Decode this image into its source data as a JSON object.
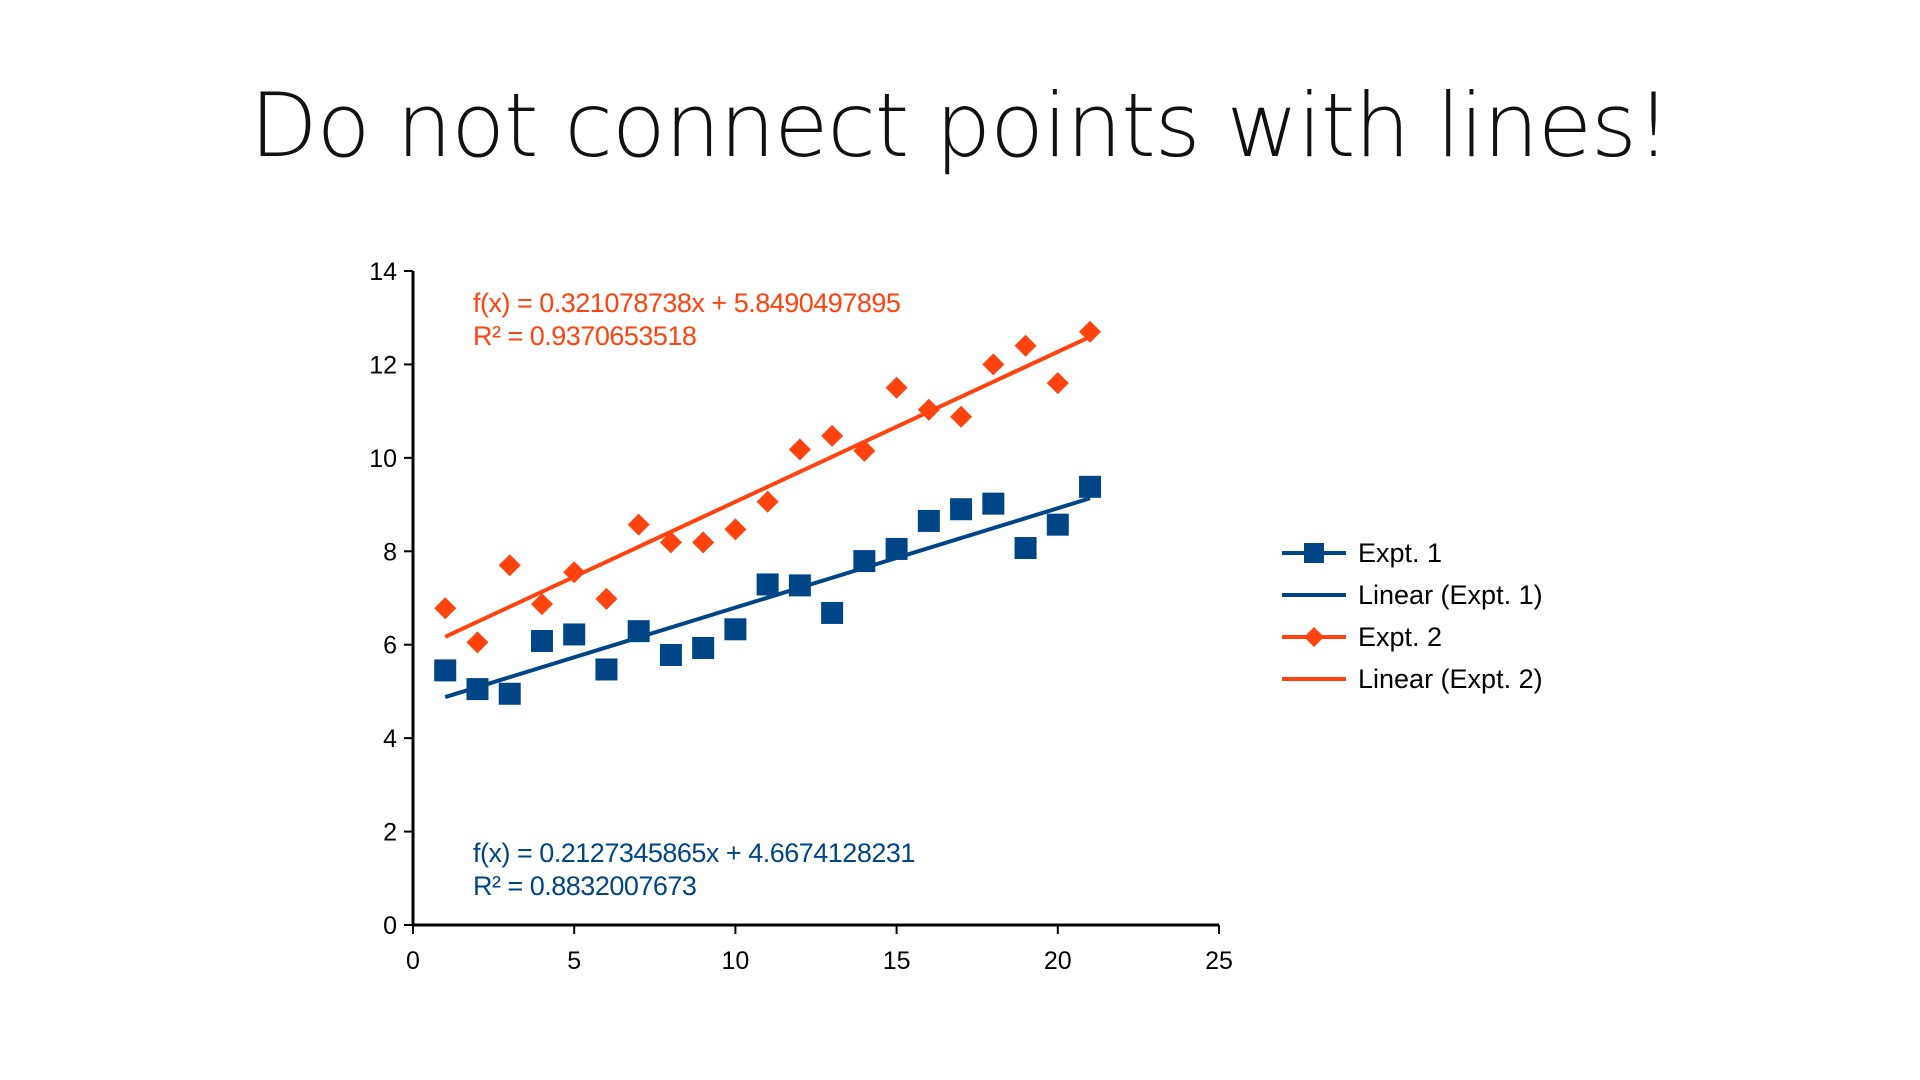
{
  "title": "Do not connect points with lines!",
  "chart_data": {
    "type": "scatter",
    "xlim": [
      0,
      25
    ],
    "ylim": [
      0,
      14
    ],
    "x_ticks": [
      0,
      5,
      10,
      15,
      20,
      25
    ],
    "y_ticks": [
      0,
      2,
      4,
      6,
      8,
      10,
      12,
      14
    ],
    "grid": false,
    "legend_position": "right",
    "series": [
      {
        "name": "Expt. 1",
        "marker": "square",
        "color": "#004586",
        "x": [
          1,
          2,
          3,
          4,
          5,
          6,
          7,
          8,
          9,
          10,
          11,
          12,
          13,
          14,
          15,
          16,
          17,
          18,
          19,
          20,
          21
        ],
        "y": [
          5.45,
          5.05,
          4.95,
          6.08,
          6.22,
          5.47,
          6.29,
          5.78,
          5.93,
          6.33,
          7.29,
          7.27,
          6.68,
          7.79,
          8.05,
          8.65,
          8.9,
          9.02,
          8.07,
          8.57,
          9.38
        ],
        "trendline": {
          "name": "Linear (Expt. 1)",
          "slope": 0.2127345865,
          "intercept": 4.6674128231,
          "equation": "f(x) = 0.2127345865x + 4.6674128231",
          "r_squared": "R² = 0.8832007673"
        }
      },
      {
        "name": "Expt. 2",
        "marker": "diamond",
        "color": "#ff420e",
        "x": [
          1,
          2,
          3,
          4,
          5,
          6,
          7,
          8,
          9,
          10,
          11,
          12,
          13,
          14,
          15,
          16,
          17,
          18,
          19,
          20,
          21
        ],
        "y": [
          6.78,
          6.05,
          7.7,
          6.87,
          7.55,
          6.98,
          8.57,
          8.19,
          8.19,
          8.47,
          9.06,
          10.18,
          10.47,
          10.15,
          11.5,
          11.03,
          10.88,
          12.0,
          12.4,
          11.6,
          12.7
        ],
        "trendline": {
          "name": "Linear (Expt. 2)",
          "slope": 0.321078738,
          "intercept": 5.8490497895,
          "equation": "f(x) = 0.321078738x + 5.8490497895",
          "r_squared": "R² = 0.9370653518"
        }
      }
    ]
  }
}
